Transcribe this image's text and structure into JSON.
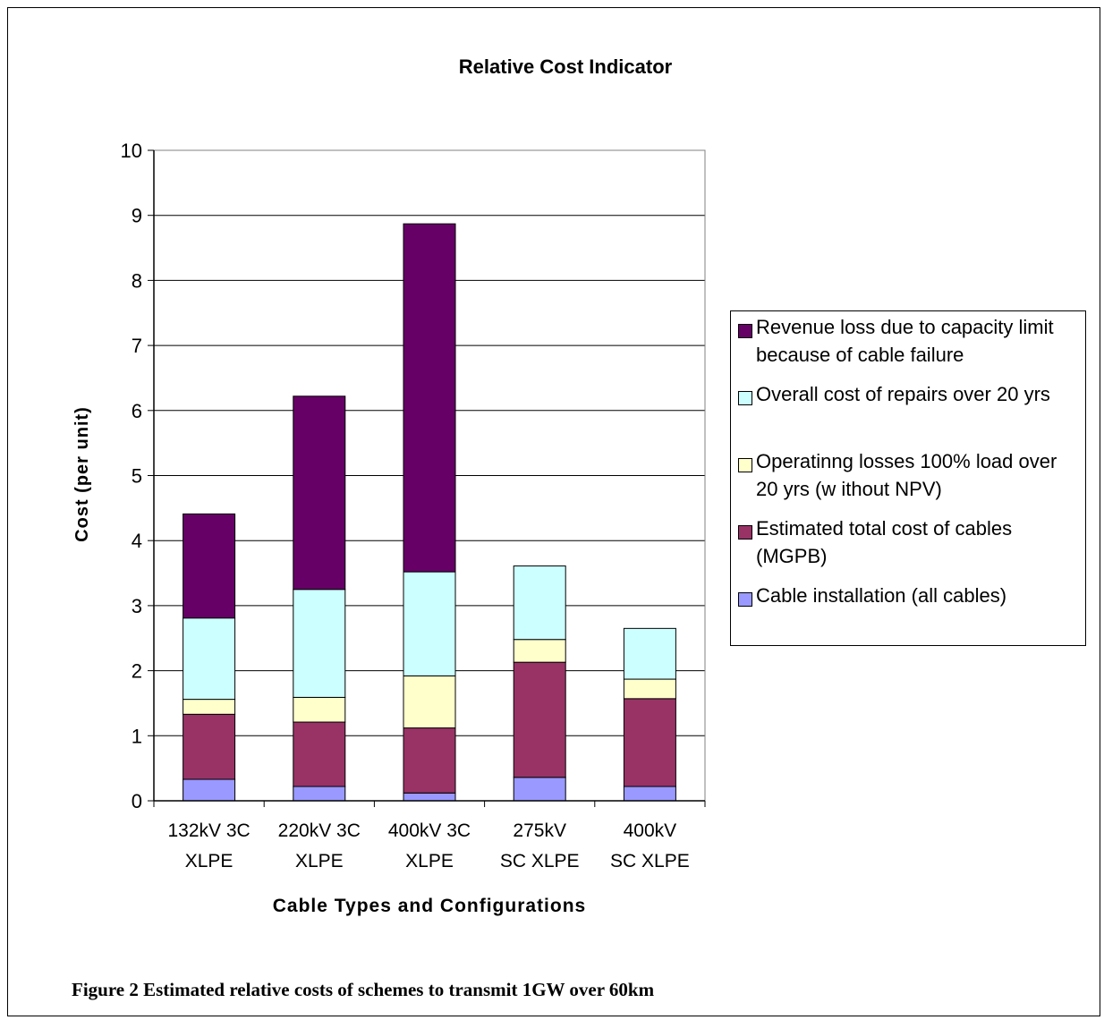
{
  "caption": "Figure 2 Estimated relative costs of schemes to transmit 1GW over 60km",
  "chart_data": {
    "type": "bar",
    "stacked": true,
    "title": "Relative Cost Indicator",
    "xlabel": "Cable Types and Configurations",
    "ylabel": "Cost (per unit)",
    "ylim": [
      0,
      10
    ],
    "yticks": [
      "0",
      "1",
      "2",
      "3",
      "4",
      "5",
      "6",
      "7",
      "8",
      "9",
      "10"
    ],
    "grid": true,
    "legend_position": "right",
    "categories": [
      [
        "132kV  3C",
        "XLPE"
      ],
      [
        "220kV  3C",
        "XLPE"
      ],
      [
        "400kV  3C",
        "XLPE"
      ],
      [
        "275kV",
        "SC XLPE"
      ],
      [
        "400kV",
        "SC XLPE"
      ]
    ],
    "series": [
      {
        "name": "Cable installation (all cables)",
        "color": "#9999ff",
        "values": [
          0.33,
          0.22,
          0.12,
          0.36,
          0.22
        ]
      },
      {
        "name": "Estimated total cost of cables (MGPB)",
        "color": "#993366",
        "values": [
          1.0,
          0.99,
          1.0,
          1.77,
          1.35
        ]
      },
      {
        "name": "Operatinng losses 100% load over 20 yrs (w ithout NPV)",
        "color": "#ffffcc",
        "values": [
          0.23,
          0.38,
          0.8,
          0.35,
          0.3
        ]
      },
      {
        "name": "Overall cost of repairs over 20 yrs",
        "color": "#ccffff",
        "values": [
          1.25,
          1.66,
          1.6,
          1.13,
          0.78
        ]
      },
      {
        "name": "Revenue loss due to capacity limit because of cable failure",
        "color": "#660066",
        "values": [
          1.6,
          2.97,
          5.35,
          0,
          0
        ]
      }
    ]
  }
}
